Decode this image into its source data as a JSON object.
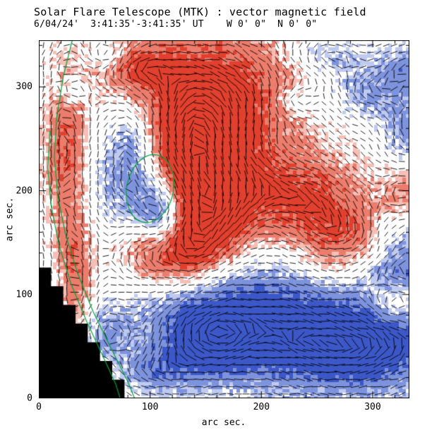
{
  "header": {
    "title": "Solar Flare Telescope (MTK) : vector magnetic field",
    "subtitle": "6/04/24'  3:41:35'-3:41:35' UT    W 0' 0\"  N 0' 0\""
  },
  "axes": {
    "xlabel": "arc sec.",
    "ylabel": "arc sec.",
    "xticks": [
      0,
      100,
      200,
      300
    ],
    "yticks": [
      0,
      100,
      200,
      300
    ],
    "xrange": [
      0,
      333
    ],
    "yrange": [
      0,
      345
    ],
    "minor_tick": 20
  },
  "colors": {
    "background": "#ffffff",
    "frame": "#000000",
    "text": "#000000"
  },
  "chart_data": {
    "type": "heatmap",
    "subtype": "vector-magnetogram",
    "title": "Solar Flare Telescope (MTK) : vector magnetic field",
    "xlabel": "arc sec.",
    "ylabel": "arc sec.",
    "xlim": [
      0,
      333
    ],
    "ylim": [
      0,
      345
    ],
    "grid": false,
    "legend": false,
    "palette": {
      "positive_core": "#e2402e",
      "positive_mid": "#ec7d6d",
      "positive_fringe": "#f6beb4",
      "negative_core": "#3c58c8",
      "negative_mid": "#7e93dd",
      "negative_fringe": "#bfcaf0"
    },
    "regions": [
      {
        "s": 1,
        "x": 150,
        "y": 292,
        "sx": 58,
        "sy": 46,
        "a": 1.5
      },
      {
        "s": 1,
        "x": 132,
        "y": 232,
        "sx": 36,
        "sy": 40,
        "a": 1.5
      },
      {
        "s": 1,
        "x": 150,
        "y": 172,
        "sx": 26,
        "sy": 34,
        "a": 1.4
      },
      {
        "s": 1,
        "x": 116,
        "y": 140,
        "sx": 30,
        "sy": 24,
        "a": 1.3
      },
      {
        "s": 1,
        "x": 228,
        "y": 196,
        "sx": 46,
        "sy": 30,
        "a": 1.15
      },
      {
        "s": 1,
        "x": 278,
        "y": 152,
        "sx": 34,
        "sy": 26,
        "a": 1.05
      },
      {
        "s": 1,
        "x": 24,
        "y": 235,
        "sx": 13,
        "sy": 55,
        "a": 0.95
      },
      {
        "s": 1,
        "x": 33,
        "y": 118,
        "sx": 11,
        "sy": 38,
        "a": 0.9
      },
      {
        "s": 1,
        "x": 320,
        "y": 92,
        "sx": 16,
        "sy": 14,
        "a": 1.1
      },
      {
        "s": 1,
        "x": 329,
        "y": 196,
        "sx": 15,
        "sy": 18,
        "a": 0.8
      },
      {
        "s": 1,
        "x": 88,
        "y": 318,
        "sx": 22,
        "sy": 16,
        "a": 0.9
      },
      {
        "s": -1,
        "x": 86,
        "y": 232,
        "sx": 22,
        "sy": 46,
        "a": 1.6
      },
      {
        "s": -1,
        "x": 112,
        "y": 178,
        "sx": 14,
        "sy": 22,
        "a": 1.6
      },
      {
        "s": -1,
        "x": 196,
        "y": 74,
        "sx": 66,
        "sy": 38,
        "a": 1.5
      },
      {
        "s": -1,
        "x": 288,
        "y": 46,
        "sx": 52,
        "sy": 28,
        "a": 1.4
      },
      {
        "s": -1,
        "x": 324,
        "y": 128,
        "sx": 24,
        "sy": 42,
        "a": 1.05
      },
      {
        "s": -1,
        "x": 150,
        "y": 58,
        "sx": 28,
        "sy": 26,
        "a": 0.9
      },
      {
        "s": -1,
        "x": 300,
        "y": 298,
        "sx": 28,
        "sy": 20,
        "a": 0.75
      },
      {
        "s": -1,
        "x": 258,
        "y": 330,
        "sx": 20,
        "sy": 12,
        "a": 0.6
      },
      {
        "s": -1,
        "x": 332,
        "y": 258,
        "sx": 14,
        "sy": 22,
        "a": 0.7
      },
      {
        "s": -1,
        "x": 108,
        "y": 26,
        "sx": 24,
        "sy": 14,
        "a": 0.65
      },
      {
        "s": -1,
        "x": 62,
        "y": 62,
        "sx": 14,
        "sy": 18,
        "a": 0.55
      },
      {
        "s": -1,
        "x": 64,
        "y": 330,
        "sx": 12,
        "sy": 10,
        "a": 0.55
      },
      {
        "s": -1,
        "x": 30,
        "y": 296,
        "sx": 11,
        "sy": 11,
        "a": 0.5
      },
      {
        "s": -1,
        "x": 335,
        "y": 322,
        "sx": 18,
        "sy": 14,
        "a": 0.65
      },
      {
        "s": -1,
        "x": 232,
        "y": 286,
        "sx": 13,
        "sy": 10,
        "a": 0.5
      }
    ],
    "contours": {
      "color": "#00a33e",
      "lines": [
        [
          [
            30,
            345
          ],
          [
            22,
            310
          ],
          [
            16,
            270
          ],
          [
            14,
            232
          ],
          [
            17,
            195
          ],
          [
            24,
            158
          ],
          [
            35,
            120
          ],
          [
            49,
            83
          ],
          [
            65,
            48
          ],
          [
            80,
            16
          ],
          [
            86,
            0
          ]
        ],
        [
          [
            10,
            258
          ],
          [
            8,
            222
          ],
          [
            11,
            186
          ],
          [
            18,
            148
          ],
          [
            29,
            110
          ],
          [
            43,
            74
          ],
          [
            57,
            42
          ],
          [
            69,
            14
          ],
          [
            73,
            0
          ]
        ]
      ],
      "ellipse": {
        "cx": 100,
        "cy": 202,
        "rx": 21,
        "ry": 33,
        "rot": 0.2
      }
    },
    "occulted_region": {
      "color": "#000000",
      "polygon": [
        [
          0,
          126
        ],
        [
          11,
          126
        ],
        [
          11,
          108
        ],
        [
          22,
          108
        ],
        [
          22,
          90
        ],
        [
          33,
          90
        ],
        [
          33,
          72
        ],
        [
          44,
          72
        ],
        [
          44,
          54
        ],
        [
          55,
          54
        ],
        [
          55,
          36
        ],
        [
          66,
          36
        ],
        [
          66,
          18
        ],
        [
          77,
          18
        ],
        [
          77,
          0
        ],
        [
          0,
          0
        ]
      ]
    },
    "vector_grid": {
      "spacing": 7,
      "length": 10,
      "color": "#000000"
    }
  }
}
